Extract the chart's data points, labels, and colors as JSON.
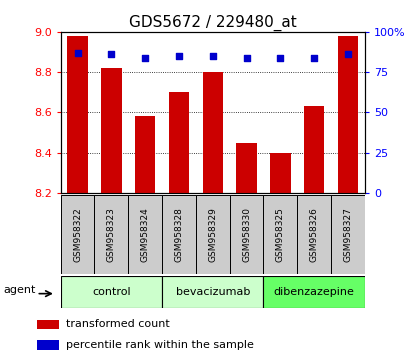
{
  "title": "GDS5672 / 229480_at",
  "samples": [
    "GSM958322",
    "GSM958323",
    "GSM958324",
    "GSM958328",
    "GSM958329",
    "GSM958330",
    "GSM958325",
    "GSM958326",
    "GSM958327"
  ],
  "bar_values": [
    8.98,
    8.82,
    8.58,
    8.7,
    8.8,
    8.45,
    8.4,
    8.63,
    8.98
  ],
  "bar_bottom": 8.2,
  "percentile_values": [
    87,
    86,
    84,
    85,
    85,
    84,
    84,
    84,
    86
  ],
  "ylim_left": [
    8.2,
    9.0
  ],
  "ylim_right": [
    0,
    100
  ],
  "yticks_left": [
    8.2,
    8.4,
    8.6,
    8.8,
    9.0
  ],
  "yticks_right": [
    0,
    25,
    50,
    75,
    100
  ],
  "ytick_labels_right": [
    "0",
    "25",
    "50",
    "75",
    "100%"
  ],
  "groups": [
    {
      "label": "control",
      "start": 0,
      "end": 3,
      "color": "#ccffcc"
    },
    {
      "label": "bevacizumab",
      "start": 3,
      "end": 6,
      "color": "#ccffcc"
    },
    {
      "label": "dibenzazepine",
      "start": 6,
      "end": 9,
      "color": "#66ff66"
    }
  ],
  "bar_color": "#cc0000",
  "percentile_color": "#0000cc",
  "bar_width": 0.6,
  "background_color": "#ffffff",
  "title_fontsize": 11,
  "legend_items": [
    "transformed count",
    "percentile rank within the sample"
  ],
  "agent_label": "agent",
  "sample_box_color": "#cccccc",
  "sample_box_edge": "#888888"
}
